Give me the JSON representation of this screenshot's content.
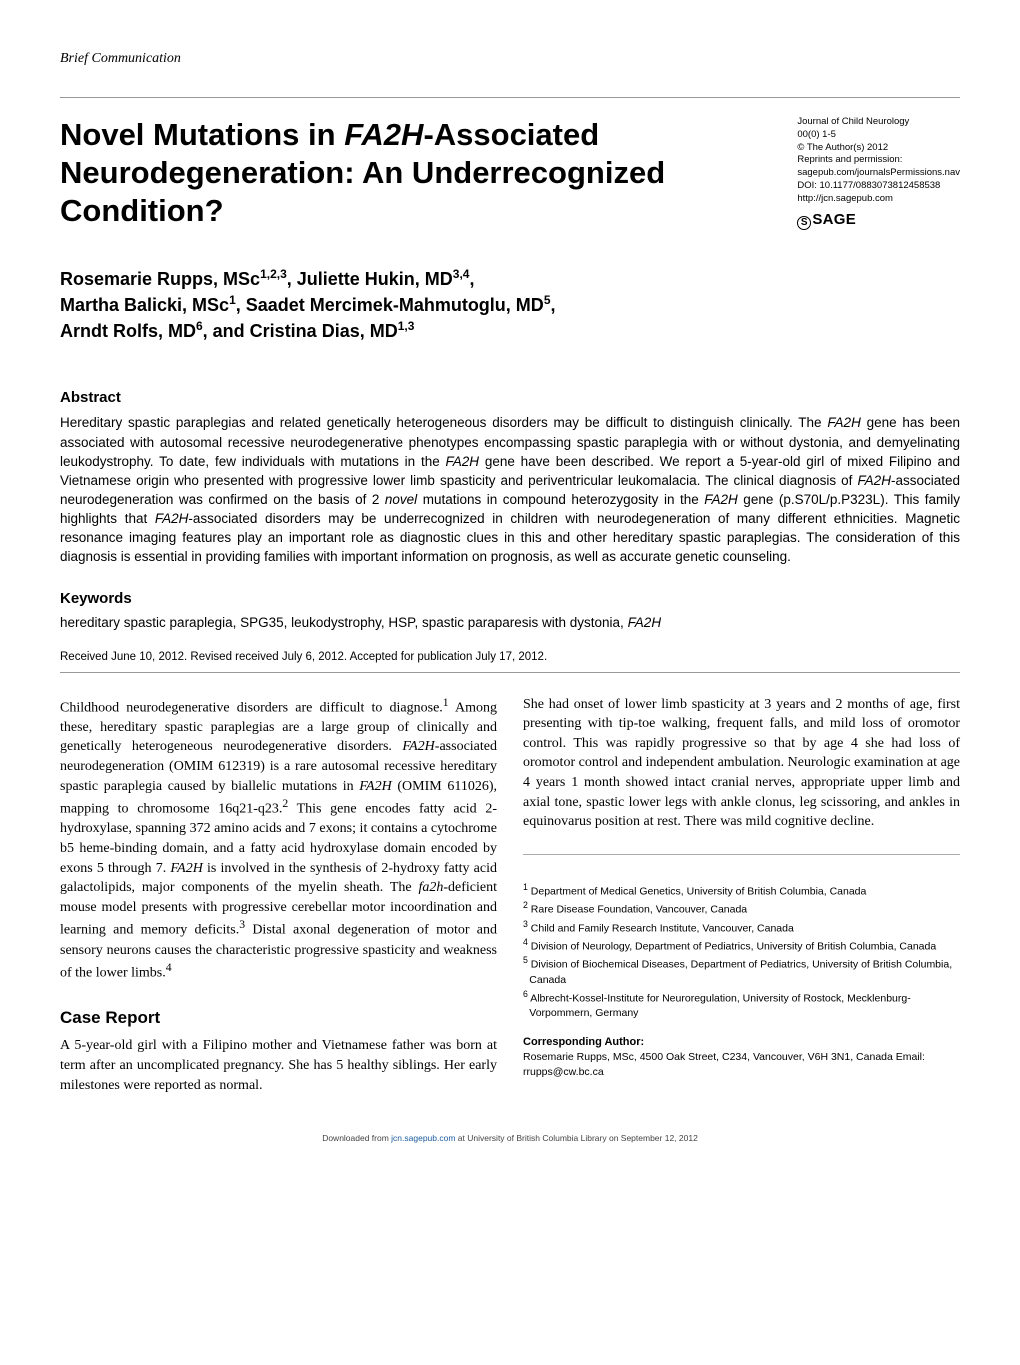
{
  "article_type": "Brief Communication",
  "title": "Novel Mutations in <span class='ital'>FA2H</span>-Associated Neurodegeneration: An Underrecognized Condition?",
  "journal_meta": {
    "journal": "Journal of Child Neurology",
    "issue": "00(0) 1-5",
    "copyright": "© The Author(s) 2012",
    "reprints_label": "Reprints and permission:",
    "reprints_url": "sagepub.com/journalsPermissions.nav",
    "doi": "DOI: 10.1177/0883073812458538",
    "site": "http://jcn.sagepub.com"
  },
  "authors_html": "Rosemarie Rupps, MSc<sup>1,2,3</sup>, Juliette Hukin, MD<sup>3,4</sup>,<br>Martha Balicki, MSc<sup>1</sup>, Saadet Mercimek-Mahmutoglu, MD<sup>5</sup>,<br>Arndt Rolfs, MD<sup>6</sup>, and Cristina Dias, MD<sup>1,3</sup>",
  "abstract_heading": "Abstract",
  "abstract_html": "Hereditary spastic paraplegias and related genetically heterogeneous disorders may be difficult to distinguish clinically. The <span class='ital'>FA2H</span> gene has been associated with autosomal recessive neurodegenerative phenotypes encompassing spastic paraplegia with or without dystonia, and demyelinating leukodystrophy. To date, few individuals with mutations in the <span class='ital'>FA2H</span> gene have been described. We report a 5-year-old girl of mixed Filipino and Vietnamese origin who presented with progressive lower limb spasticity and periventricular leukomalacia. The clinical diagnosis of <span class='ital'>FA2H</span>-associated neurodegeneration was confirmed on the basis of 2 <span class='ital'>novel</span> mutations in compound heterozygosity in the <span class='ital'>FA2H</span> gene (p.S70L/p.P323L). This family highlights that <span class='ital'>FA2H</span>-associated disorders may be underrecognized in children with neurodegeneration of many different ethnicities. Magnetic resonance imaging features play an important role as diagnostic clues in this and other hereditary spastic paraplegias. The consideration of this diagnosis is essential in providing families with important information on prognosis, as well as accurate genetic counseling.",
  "keywords_heading": "Keywords",
  "keywords_html": "hereditary spastic paraplegia, SPG35, leukodystrophy, HSP, spastic paraparesis with dystonia, <span class='ital'>FA2H</span>",
  "received": "Received June 10, 2012. Revised received July 6, 2012. Accepted for publication July 17, 2012.",
  "body": {
    "intro_html": "Childhood neurodegenerative disorders are difficult to diagnose.<sup>1</sup> Among these, hereditary spastic paraplegias are a large group of clinically and genetically heterogeneous neurodegenerative disorders. <span class='ital'>FA2H</span>-associated neurodegeneration (OMIM 612319) is a rare autosomal recessive hereditary spastic paraplegia caused by biallelic mutations in <span class='ital'>FA2H</span> (OMIM 611026), mapping to chromosome 16q21-q23.<sup>2</sup> This gene encodes fatty acid 2-hydroxylase, spanning 372 amino acids and 7 exons; it contains a cytochrome b5 heme-binding domain, and a fatty acid hydroxylase domain encoded by exons 5 through 7. <span class='ital'>FA2H</span> is involved in the synthesis of 2-hydroxy fatty acid galactolipids, major components of the myelin sheath. The <span class='ital'>fa2h</span>-deficient mouse model presents with progressive cerebellar motor incoordination and learning and memory deficits.<sup>3</sup> Distal axonal degeneration of motor and sensory neurons causes the characteristic progressive spasticity and weakness of the lower limbs.<sup>4</sup>",
    "case_heading": "Case Report",
    "case_left_html": "A 5-year-old girl with a Filipino mother and Vietnamese father was born at term after an uncomplicated pregnancy. She has 5 healthy siblings. Her early milestones were reported as normal.",
    "case_right_html": "She had onset of lower limb spasticity at 3 years and 2 months of age, first presenting with tip-toe walking, frequent falls, and mild loss of oromotor control. This was rapidly progressive so that by age 4 she had loss of oromotor control and independent ambulation. Neurologic examination at age 4 years 1 month showed intact cranial nerves, appropriate upper limb and axial tone, spastic lower legs with ankle clonus, leg scissoring, and ankles in equinovarus position at rest. There was mild cognitive decline."
  },
  "affiliations": [
    "<sup>1</sup> Department of Medical Genetics, University of British Columbia, Canada",
    "<sup>2</sup> Rare Disease Foundation, Vancouver, Canada",
    "<sup>3</sup> Child and Family Research Institute, Vancouver, Canada",
    "<sup>4</sup> Division of Neurology, Department of Pediatrics, University of British Columbia, Canada",
    "<sup>5</sup> Division of Biochemical Diseases, Department of Pediatrics, University of British Columbia, Canada",
    "<sup>6</sup> Albrecht-Kossel-Institute for Neuroregulation, University of Rostock, Mecklenburg-Vorpommern, Germany"
  ],
  "corresponding_heading": "Corresponding Author:",
  "corresponding_text": "Rosemarie Rupps, MSc, 4500 Oak Street, C234, Vancouver, V6H 3N1, Canada Email: rrupps@cw.bc.ca",
  "footer_html": "Downloaded from <a>jcn.sagepub.com</a> at University of British Columbia Library on September 12, 2012"
}
